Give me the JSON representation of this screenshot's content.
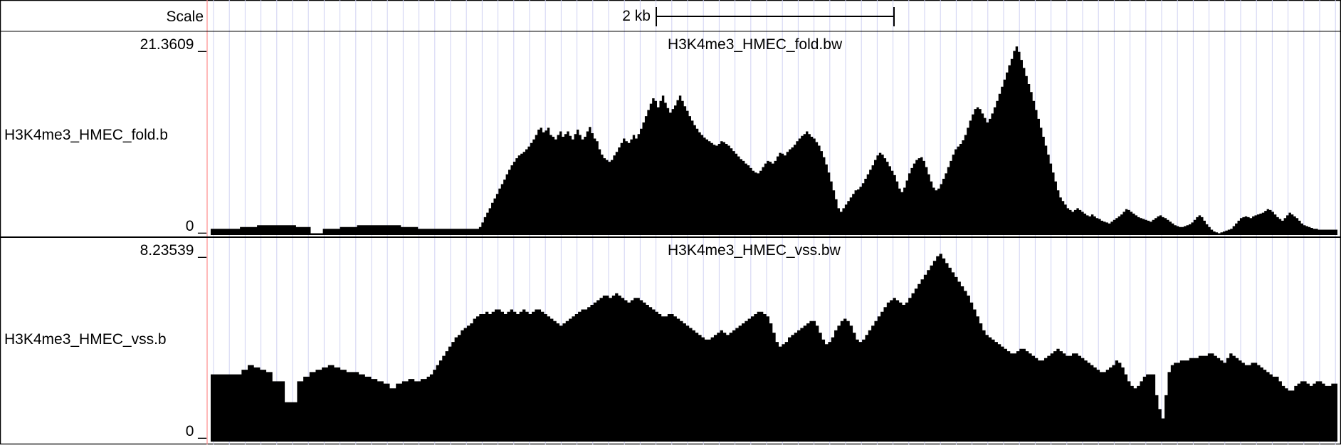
{
  "scale": {
    "label": "Scale",
    "bar_label": "2 kb"
  },
  "tracks": [
    {
      "name": "H3K4me3_HMEC_fold.bw",
      "side_label": "H3K4me3_HMEC_fold.b",
      "max_label": "21.3609 _",
      "min_label": "0 _",
      "ymax": 21.3609,
      "values": [
        0.7,
        0.7,
        0.7,
        0.7,
        0.7,
        0.7,
        0.7,
        0.7,
        0.7,
        0.7,
        0.7,
        0.7,
        0.9,
        0.9,
        0.9,
        0.9,
        0.9,
        0.9,
        0.9,
        1.1,
        1.1,
        1.1,
        1.1,
        1.1,
        1.1,
        1.1,
        1.1,
        1.1,
        1.1,
        1.1,
        1.1,
        1.1,
        1.1,
        1.1,
        1.1,
        0.9,
        0.9,
        0.9,
        0.9,
        0.9,
        0.9,
        0.2,
        0.2,
        0.2,
        0.2,
        0.2,
        0.7,
        0.7,
        0.7,
        0.7,
        0.7,
        0.7,
        0.7,
        0.9,
        0.9,
        0.9,
        0.9,
        0.9,
        0.9,
        0.9,
        1.1,
        1.1,
        1.1,
        1.1,
        1.1,
        1.1,
        1.1,
        1.1,
        1.1,
        1.1,
        1.1,
        1.1,
        1.1,
        1.1,
        1.1,
        1.1,
        1.1,
        1.1,
        0.9,
        0.9,
        0.9,
        0.9,
        0.9,
        0.9,
        0.9,
        0.7,
        0.7,
        0.7,
        0.7,
        0.7,
        0.7,
        0.7,
        0.7,
        0.7,
        0.7,
        0.7,
        0.7,
        0.7,
        0.7,
        0.7,
        0.7,
        0.7,
        0.7,
        0.7,
        0.7,
        0.7,
        0.7,
        0.7,
        0.7,
        0.7,
        0.9,
        1.4,
        2.0,
        2.5,
        3.0,
        3.6,
        4.1,
        4.6,
        5.2,
        5.7,
        6.2,
        6.8,
        7.3,
        7.8,
        8.2,
        8.6,
        8.9,
        9.1,
        9.3,
        9.6,
        9.9,
        10.3,
        10.7,
        11.2,
        11.8,
        12.0,
        11.5,
        11.7,
        12.0,
        11.2,
        11.0,
        10.7,
        11.2,
        11.6,
        11.0,
        11.3,
        11.6,
        11.1,
        10.7,
        11.3,
        11.8,
        11.2,
        10.7,
        11.0,
        11.6,
        12.1,
        11.4,
        10.8,
        10.5,
        9.6,
        9.0,
        8.6,
        8.4,
        8.2,
        8.4,
        8.9,
        9.3,
        9.8,
        10.3,
        10.8,
        10.5,
        10.3,
        10.7,
        11.2,
        10.8,
        11.3,
        11.9,
        12.6,
        13.3,
        14.0,
        14.7,
        15.3,
        15.0,
        14.3,
        15.0,
        15.6,
        14.8,
        14.2,
        13.7,
        14.1,
        14.5,
        15.1,
        15.6,
        15.0,
        14.4,
        13.9,
        13.3,
        12.8,
        12.3,
        11.9,
        11.5,
        11.2,
        10.9,
        10.7,
        10.5,
        10.3,
        10.1,
        10.0,
        10.2,
        10.5,
        10.4,
        10.2,
        10.0,
        9.7,
        9.4,
        9.1,
        8.8,
        8.5,
        8.3,
        8.0,
        7.8,
        7.5,
        7.2,
        7.0,
        6.9,
        7.2,
        7.6,
        8.0,
        8.3,
        8.2,
        8.0,
        8.3,
        8.8,
        9.2,
        9.1,
        8.9,
        9.3,
        9.6,
        9.8,
        10.1,
        10.5,
        10.8,
        11.1,
        11.3,
        11.6,
        11.3,
        11.0,
        10.8,
        10.4,
        10.0,
        9.4,
        8.7,
        7.9,
        7.0,
        6.0,
        5.0,
        4.0,
        3.0,
        2.6,
        3.0,
        3.4,
        3.8,
        4.2,
        4.6,
        5.0,
        5.1,
        5.4,
        5.8,
        6.3,
        6.8,
        7.3,
        7.8,
        8.4,
        8.9,
        9.2,
        9.0,
        8.6,
        8.2,
        7.7,
        7.2,
        6.7,
        6.0,
        5.2,
        4.8,
        5.3,
        6.1,
        6.9,
        7.5,
        8.0,
        8.4,
        8.6,
        8.7,
        8.3,
        7.6,
        6.8,
        6.0,
        5.3,
        5.0,
        5.2,
        5.7,
        6.3,
        6.9,
        7.6,
        8.3,
        9.0,
        9.6,
        9.9,
        10.2,
        10.6,
        11.2,
        12.0,
        12.8,
        13.5,
        14.1,
        14.3,
        14.1,
        13.6,
        13.1,
        12.6,
        13.0,
        13.6,
        14.3,
        15.0,
        15.8,
        16.6,
        17.4,
        18.2,
        19.0,
        19.7,
        20.6,
        21.1,
        20.5,
        19.6,
        18.7,
        17.8,
        16.9,
        16.0,
        15.0,
        14.0,
        13.0,
        12.0,
        11.0,
        10.0,
        9.0,
        8.0,
        7.0,
        6.0,
        5.0,
        4.2,
        3.8,
        3.4,
        3.0,
        2.8,
        2.6,
        2.8,
        3.0,
        2.8,
        2.6,
        2.4,
        2.2,
        2.1,
        2.3,
        2.1,
        1.9,
        1.8,
        1.6,
        1.5,
        1.4,
        1.3,
        1.5,
        1.7,
        1.9,
        2.1,
        2.3,
        2.6,
        2.9,
        2.8,
        2.6,
        2.4,
        2.2,
        2.0,
        1.9,
        1.8,
        1.7,
        1.6,
        1.5,
        1.7,
        1.9,
        2.1,
        2.2,
        2.0,
        1.9,
        1.7,
        1.5,
        1.3,
        1.1,
        1.0,
        0.9,
        0.9,
        1.0,
        1.1,
        1.2,
        1.4,
        1.7,
        2.0,
        2.2,
        2.0,
        1.6,
        1.2,
        0.9,
        0.6,
        0.4,
        0.3,
        0.2,
        0.3,
        0.4,
        0.5,
        0.6,
        0.7,
        1.0,
        1.3,
        1.6,
        1.9,
        2.0,
        2.1,
        2.0,
        1.9,
        2.1,
        2.2,
        2.3,
        2.4,
        2.5,
        2.7,
        2.9,
        2.8,
        2.6,
        2.3,
        2.0,
        1.8,
        1.6,
        1.9,
        2.2,
        2.5,
        2.3,
        2.1,
        1.9,
        1.6,
        1.3,
        1.1,
        1.0,
        0.9,
        0.8,
        0.7,
        0.7,
        0.6,
        0.6,
        0.6,
        0.6,
        0.6,
        0.6,
        0.6,
        0.6
      ]
    },
    {
      "name": "H3K4me3_HMEC_vss.bw",
      "side_label": "H3K4me3_HMEC_vss.b",
      "max_label": "8.23539 _",
      "min_label": "0 _",
      "ymax": 8.23539,
      "values": [
        2.9,
        2.9,
        2.9,
        2.9,
        2.9,
        2.9,
        2.9,
        2.9,
        2.9,
        2.9,
        3.1,
        3.1,
        3.3,
        3.3,
        3.2,
        3.2,
        3.1,
        3.1,
        3.0,
        3.0,
        2.6,
        2.6,
        2.6,
        2.6,
        1.7,
        1.7,
        1.7,
        1.7,
        2.6,
        2.6,
        2.8,
        2.8,
        3.0,
        3.0,
        3.1,
        3.1,
        3.2,
        3.2,
        3.3,
        3.3,
        3.2,
        3.2,
        3.1,
        3.1,
        3.0,
        3.0,
        3.0,
        3.0,
        2.9,
        2.9,
        2.8,
        2.8,
        2.7,
        2.7,
        2.6,
        2.6,
        2.5,
        2.5,
        2.3,
        2.3,
        2.5,
        2.5,
        2.6,
        2.6,
        2.7,
        2.7,
        2.6,
        2.6,
        2.7,
        2.7,
        2.8,
        2.9,
        3.1,
        3.3,
        3.5,
        3.7,
        3.9,
        4.1,
        4.3,
        4.5,
        4.6,
        4.8,
        4.9,
        5.0,
        5.1,
        5.3,
        5.4,
        5.5,
        5.5,
        5.6,
        5.5,
        5.6,
        5.7,
        5.7,
        5.6,
        5.5,
        5.6,
        5.7,
        5.6,
        5.5,
        5.6,
        5.7,
        5.6,
        5.5,
        5.6,
        5.7,
        5.7,
        5.6,
        5.5,
        5.4,
        5.3,
        5.2,
        5.1,
        5.0,
        5.1,
        5.2,
        5.3,
        5.4,
        5.5,
        5.6,
        5.7,
        5.7,
        5.8,
        5.9,
        6.0,
        6.1,
        6.2,
        6.3,
        6.3,
        6.2,
        6.3,
        6.4,
        6.3,
        6.2,
        6.1,
        6.0,
        6.1,
        6.2,
        6.2,
        6.1,
        6.0,
        5.9,
        5.8,
        5.7,
        5.6,
        5.5,
        5.4,
        5.4,
        5.5,
        5.5,
        5.4,
        5.3,
        5.2,
        5.1,
        5.0,
        4.9,
        4.8,
        4.7,
        4.6,
        4.5,
        4.4,
        4.4,
        4.5,
        4.6,
        4.7,
        4.8,
        4.7,
        4.6,
        4.7,
        4.8,
        4.9,
        5.0,
        5.1,
        5.2,
        5.3,
        5.4,
        5.5,
        5.6,
        5.6,
        5.5,
        5.4,
        5.1,
        4.7,
        4.3,
        4.1,
        4.2,
        4.3,
        4.5,
        4.6,
        4.7,
        4.8,
        4.9,
        5.0,
        5.1,
        5.2,
        5.2,
        5.0,
        4.7,
        4.4,
        4.2,
        4.3,
        4.5,
        4.8,
        5.0,
        5.2,
        5.3,
        5.2,
        5.0,
        4.7,
        4.4,
        4.3,
        4.4,
        4.6,
        4.8,
        5.0,
        5.2,
        5.4,
        5.6,
        5.8,
        6.0,
        6.1,
        6.2,
        6.1,
        6.0,
        5.9,
        6.0,
        6.2,
        6.4,
        6.6,
        6.8,
        7.0,
        7.2,
        7.4,
        7.6,
        7.8,
        8.0,
        8.1,
        7.9,
        7.7,
        7.5,
        7.3,
        7.1,
        6.9,
        6.7,
        6.5,
        6.3,
        6.0,
        5.7,
        5.4,
        5.1,
        4.8,
        4.6,
        4.5,
        4.4,
        4.3,
        4.2,
        4.1,
        4.0,
        3.9,
        3.8,
        3.8,
        3.9,
        4.0,
        4.0,
        3.9,
        3.8,
        3.7,
        3.6,
        3.5,
        3.5,
        3.6,
        3.7,
        3.8,
        3.9,
        4.0,
        3.9,
        3.8,
        3.7,
        3.7,
        3.8,
        3.8,
        3.7,
        3.6,
        3.5,
        3.4,
        3.3,
        3.2,
        3.1,
        3.0,
        3.0,
        3.1,
        3.2,
        3.3,
        3.5,
        3.4,
        3.2,
        2.9,
        2.6,
        2.4,
        2.3,
        2.4,
        2.6,
        2.8,
        2.9,
        2.9,
        2.9,
        2.0,
        1.4,
        1.0,
        2.0,
        3.0,
        3.3,
        3.4,
        3.4,
        3.5,
        3.5,
        3.5,
        3.6,
        3.6,
        3.6,
        3.7,
        3.7,
        3.7,
        3.8,
        3.8,
        3.7,
        3.6,
        3.5,
        3.4,
        3.6,
        3.8,
        3.7,
        3.6,
        3.5,
        3.4,
        3.3,
        3.3,
        3.4,
        3.4,
        3.3,
        3.2,
        3.1,
        3.0,
        2.9,
        2.8,
        2.8,
        2.6,
        2.4,
        2.3,
        2.2,
        2.2,
        2.4,
        2.5,
        2.6,
        2.6,
        2.5,
        2.4,
        2.5,
        2.6,
        2.6,
        2.5,
        2.4,
        2.4,
        2.5,
        2.5
      ]
    }
  ]
}
